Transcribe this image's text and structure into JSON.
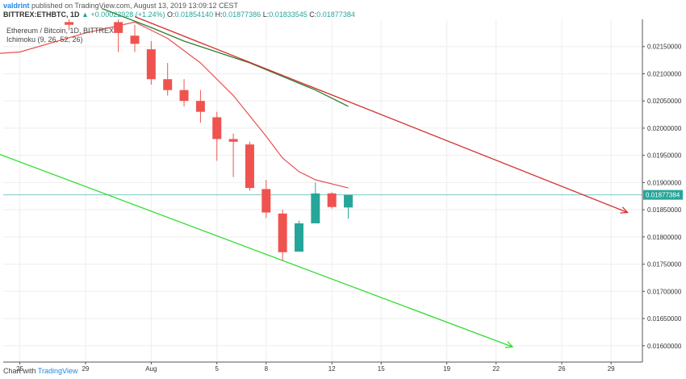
{
  "header": {
    "author": "valdrint",
    "published": "published on TradingView.com, August 13, 2019 13:09:12 CEST",
    "symbol": "BITTREX:ETHBTC, 1D",
    "change_label": "▲ +0.00022928 (+1.24%)",
    "o_label": "O:",
    "o_value": "0.01854140",
    "h_label": "H:",
    "h_value": "0.01877386",
    "l_label": "L:",
    "l_value": "0.01833545",
    "c_label": "C:",
    "c_value": "0.01877384"
  },
  "legend": {
    "title": "Ethereum / Bitcoin, 1D, BITTREX",
    "indicator": "Ichimoku (9, 26, 52, 26)"
  },
  "footer": {
    "prefix": "Chart with",
    "brand": "TradingView"
  },
  "colors": {
    "up": "#26a69a",
    "down": "#ef5350",
    "resistance_line": "#d32f2f",
    "support_line": "#33dd33",
    "conversion_line": "#e85050",
    "base_line": "#2e7d32",
    "price_line": "#26a69a"
  },
  "chart_data": {
    "type": "candlestick",
    "ylim": [
      0.0157,
      0.022
    ],
    "y_ticks": [
      "0.02150000",
      "0.02100000",
      "0.02050000",
      "0.02000000",
      "0.01950000",
      "0.01900000",
      "0.01850000",
      "0.01800000",
      "0.01750000",
      "0.01700000",
      "0.01650000",
      "0.01600000"
    ],
    "y_tick_values": [
      0.0215,
      0.021,
      0.0205,
      0.02,
      0.0195,
      0.019,
      0.0185,
      0.018,
      0.0175,
      0.017,
      0.0165,
      0.016
    ],
    "x_ticks": [
      "25",
      "29",
      "Aug",
      "5",
      "8",
      "12",
      "15",
      "19",
      "22",
      "26",
      "29"
    ],
    "x_tick_days": [
      -7,
      -3,
      1,
      5,
      8,
      12,
      15,
      19,
      22,
      26,
      29
    ],
    "current_price": "0.01877384",
    "current_price_value": 0.01877384,
    "candles": [
      {
        "day": -9,
        "o": 0.0211,
        "h": 0.0216,
        "l": 0.0206,
        "c": 0.0214
      },
      {
        "day": -4,
        "o": 0.02195,
        "h": 0.022,
        "l": 0.0218,
        "c": 0.0219
      },
      {
        "day": -1,
        "o": 0.02195,
        "h": 0.022,
        "l": 0.0214,
        "c": 0.02175
      },
      {
        "day": 0,
        "o": 0.0217,
        "h": 0.0219,
        "l": 0.0214,
        "c": 0.02155
      },
      {
        "day": 1,
        "o": 0.02145,
        "h": 0.0216,
        "l": 0.0208,
        "c": 0.0209
      },
      {
        "day": 2,
        "o": 0.0209,
        "h": 0.0212,
        "l": 0.0206,
        "c": 0.0207
      },
      {
        "day": 3,
        "o": 0.0207,
        "h": 0.0209,
        "l": 0.0204,
        "c": 0.0205
      },
      {
        "day": 4,
        "o": 0.0205,
        "h": 0.0207,
        "l": 0.0201,
        "c": 0.0203
      },
      {
        "day": 5,
        "o": 0.0202,
        "h": 0.0203,
        "l": 0.0194,
        "c": 0.0198
      },
      {
        "day": 6,
        "o": 0.0198,
        "h": 0.0199,
        "l": 0.0191,
        "c": 0.01975
      },
      {
        "day": 7,
        "o": 0.0197,
        "h": 0.01975,
        "l": 0.01885,
        "c": 0.0189
      },
      {
        "day": 8,
        "o": 0.01888,
        "h": 0.01905,
        "l": 0.01835,
        "c": 0.01845
      },
      {
        "day": 9,
        "o": 0.01843,
        "h": 0.0185,
        "l": 0.01757,
        "c": 0.01772
      },
      {
        "day": 10,
        "o": 0.01773,
        "h": 0.0183,
        "l": 0.01773,
        "c": 0.01825
      },
      {
        "day": 11,
        "o": 0.01825,
        "h": 0.019,
        "l": 0.01825,
        "c": 0.0188
      },
      {
        "day": 12,
        "o": 0.0188,
        "h": 0.01882,
        "l": 0.01852,
        "c": 0.01855
      },
      {
        "day": 13,
        "o": 0.0185414,
        "h": 0.01877386,
        "l": 0.01833545,
        "c": 0.01877384
      }
    ],
    "conversion_line": [
      [
        -12,
        0.0213
      ],
      [
        -7,
        0.0214
      ],
      [
        -3,
        0.02175
      ],
      [
        0,
        0.02195
      ],
      [
        2,
        0.02165
      ],
      [
        4,
        0.0212
      ],
      [
        6,
        0.0206
      ],
      [
        8,
        0.01985
      ],
      [
        9,
        0.01945
      ],
      [
        10,
        0.0192
      ],
      [
        11,
        0.01905
      ],
      [
        13,
        0.0189
      ]
    ],
    "base_line": [
      [
        -2,
        0.0222
      ],
      [
        1,
        0.02185
      ],
      [
        3,
        0.0216
      ],
      [
        5,
        0.0214
      ],
      [
        7,
        0.0212
      ],
      [
        9,
        0.02095
      ],
      [
        11,
        0.0207
      ],
      [
        13,
        0.0204
      ]
    ],
    "resistance_trendline": [
      [
        0,
        0.02205
      ],
      [
        30,
        0.01845
      ]
    ],
    "support_trendline": [
      [
        -10,
        0.01972
      ],
      [
        23,
        0.01598
      ]
    ]
  }
}
